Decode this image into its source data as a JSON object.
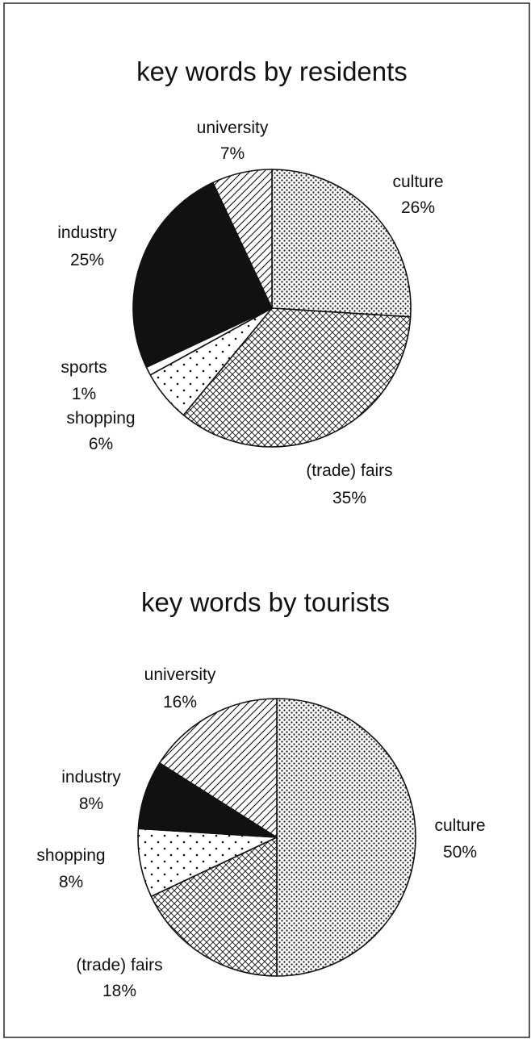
{
  "chart_data": [
    {
      "type": "pie",
      "title": "key words by residents",
      "slices": [
        {
          "label": "culture",
          "value": 26,
          "value_label": "26%",
          "fill": "dots"
        },
        {
          "label": "(trade) fairs",
          "value": 35,
          "value_label": "35%",
          "fill": "crosshatch"
        },
        {
          "label": "shopping",
          "value": 6,
          "value_label": "6%",
          "fill": "sparse-dots"
        },
        {
          "label": "sports",
          "value": 1,
          "value_label": "1%",
          "fill": "white"
        },
        {
          "label": "industry",
          "value": 25,
          "value_label": "25%",
          "fill": "black"
        },
        {
          "label": "university",
          "value": 7,
          "value_label": "7%",
          "fill": "diagonal-lines"
        }
      ]
    },
    {
      "type": "pie",
      "title": "key words by tourists",
      "slices": [
        {
          "label": "culture",
          "value": 50,
          "value_label": "50%",
          "fill": "dots"
        },
        {
          "label": "(trade) fairs",
          "value": 18,
          "value_label": "18%",
          "fill": "crosshatch"
        },
        {
          "label": "shopping",
          "value": 8,
          "value_label": "8%",
          "fill": "sparse-dots"
        },
        {
          "label": "industry",
          "value": 8,
          "value_label": "8%",
          "fill": "black"
        },
        {
          "label": "university",
          "value": 16,
          "value_label": "16%",
          "fill": "diagonal-lines"
        }
      ]
    }
  ]
}
